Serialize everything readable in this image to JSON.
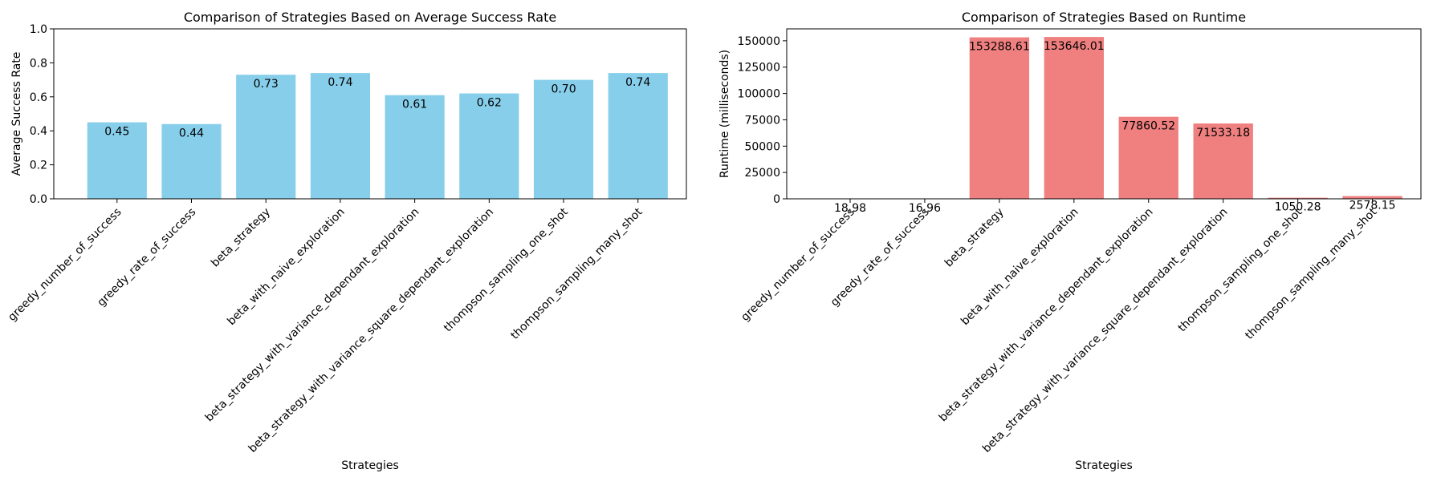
{
  "chart_data": [
    {
      "type": "bar",
      "title": "Comparison of Strategies Based on Average Success Rate",
      "xlabel": "Strategies",
      "ylabel": "Average Success Rate",
      "categories": [
        "greedy_number_of_success",
        "greedy_rate_of_success",
        "beta_strategy",
        "beta_with_naive_exploration",
        "beta_strategy_with_variance_dependant_exploration",
        "beta_strategy_with_variance_square_dependant_exploration",
        "thompson_sampling_one_shot",
        "thompson_sampling_many_shot"
      ],
      "values": [
        0.45,
        0.44,
        0.73,
        0.74,
        0.61,
        0.62,
        0.7,
        0.74
      ],
      "value_labels": [
        "0.45",
        "0.44",
        "0.73",
        "0.74",
        "0.61",
        "0.62",
        "0.70",
        "0.74"
      ],
      "ylim": [
        0,
        1.0
      ],
      "yticks": [
        "0.0",
        "0.2",
        "0.4",
        "0.6",
        "0.8",
        "1.0"
      ],
      "bar_color": "#87ceeb",
      "grid": false
    },
    {
      "type": "bar",
      "title": "Comparison of Strategies Based on Runtime",
      "xlabel": "Strategies",
      "ylabel": "Runtime (milliseconds)",
      "categories": [
        "greedy_number_of_success",
        "greedy_rate_of_success",
        "beta_strategy",
        "beta_with_naive_exploration",
        "beta_strategy_with_variance_dependant_exploration",
        "beta_strategy_with_variance_square_dependant_exploration",
        "thompson_sampling_one_shot",
        "thompson_sampling_many_shot"
      ],
      "values": [
        18.98,
        16.96,
        153288.61,
        153646.01,
        77860.52,
        71533.18,
        1050.28,
        2578.15
      ],
      "value_labels": [
        "18.98",
        "16.96",
        "153288.61",
        "153646.01",
        "77860.52",
        "71533.18",
        "1050.28",
        "2578.15"
      ],
      "ylim": [
        0,
        161330
      ],
      "yticks": [
        "0",
        "25000",
        "50000",
        "75000",
        "100000",
        "125000",
        "150000"
      ],
      "bar_color": "#f08080",
      "grid": false
    }
  ]
}
